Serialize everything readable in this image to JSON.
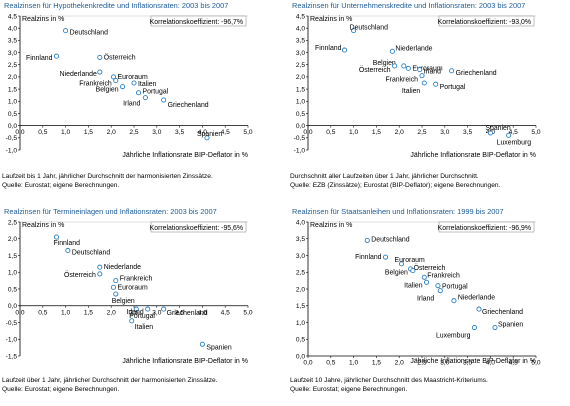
{
  "chart_data": [
    {
      "type": "scatter",
      "title": "Realzinsen für Hypothekenkredite und Inflationsraten: 2003 bis 2007",
      "ylabel": "Realzins in %",
      "xlabel": "Jährliche Inflationsrate BIP-Deflator in %",
      "xlim": [
        0,
        5
      ],
      "ylim": [
        -1,
        4.5
      ],
      "xticks": [
        "0,0",
        "0,5",
        "1,0",
        "1,5",
        "2,0",
        "2,5",
        "3,0",
        "3,5",
        "4,0",
        "4,5",
        "5,0"
      ],
      "yticks": [
        "-1,0",
        "-0,5",
        "0,0",
        "0,5",
        "1,0",
        "1,5",
        "2,0",
        "2,5",
        "3,0",
        "3,5",
        "4,0",
        "4,5"
      ],
      "annotation": "Korrelationskoeffizient: -96,7%",
      "points": [
        {
          "label": "Deutschland",
          "x": 1.0,
          "y": 3.9
        },
        {
          "label": "Finnland",
          "x": 0.8,
          "y": 2.85
        },
        {
          "label": "Österreich",
          "x": 1.75,
          "y": 2.8
        },
        {
          "label": "Niederlande",
          "x": 1.75,
          "y": 2.2
        },
        {
          "label": "Euroraum",
          "x": 2.05,
          "y": 2.0
        },
        {
          "label": "Frankreich",
          "x": 2.1,
          "y": 1.85
        },
        {
          "label": "Italien",
          "x": 2.5,
          "y": 1.75
        },
        {
          "label": "Belgien",
          "x": 2.25,
          "y": 1.6
        },
        {
          "label": "Portugal",
          "x": 2.6,
          "y": 1.35
        },
        {
          "label": "Irland",
          "x": 2.75,
          "y": 1.15
        },
        {
          "label": "Griechenland",
          "x": 3.15,
          "y": 1.05
        },
        {
          "label": "Spanien",
          "x": 4.1,
          "y": -0.5
        }
      ]
    },
    {
      "type": "scatter",
      "title": "Realzinsen für Unternehmenskredite und Inflationsraten: 2003 bis 2007",
      "ylabel": "Realzins in %",
      "xlabel": "Jährliche Inflationsrate BIP-Deflator in %",
      "xlim": [
        0,
        5
      ],
      "ylim": [
        -1,
        4.5
      ],
      "xticks": [
        "0,0",
        "0,5",
        "1,0",
        "1,5",
        "2,0",
        "2,5",
        "3,0",
        "3,5",
        "4,0",
        "4,5",
        "5,0"
      ],
      "yticks": [
        "-1,0",
        "-0,5",
        "0,0",
        "0,5",
        "1,0",
        "1,5",
        "2,0",
        "2,5",
        "3,0",
        "3,5",
        "4,0",
        "4,5"
      ],
      "annotation": "Korrelationskoeffizient: -93,0%",
      "points": [
        {
          "label": "Deutschland",
          "x": 1.0,
          "y": 3.9
        },
        {
          "label": "Finnland",
          "x": 0.8,
          "y": 3.1
        },
        {
          "label": "Niederlande",
          "x": 1.85,
          "y": 3.05
        },
        {
          "label": "Belgien",
          "x": 2.1,
          "y": 2.45
        },
        {
          "label": "Österreich",
          "x": 1.9,
          "y": 2.45
        },
        {
          "label": "Euroraum",
          "x": 2.2,
          "y": 2.35
        },
        {
          "label": "Irland",
          "x": 2.45,
          "y": 2.3
        },
        {
          "label": "Frankreich",
          "x": 2.5,
          "y": 2.05
        },
        {
          "label": "Griechenland",
          "x": 3.15,
          "y": 2.25
        },
        {
          "label": "Portugal",
          "x": 2.8,
          "y": 1.7
        },
        {
          "label": "Italien",
          "x": 2.55,
          "y": 1.75
        },
        {
          "label": "Spanien",
          "x": 4.0,
          "y": -0.3
        },
        {
          "label": "Luxemburg",
          "x": 4.4,
          "y": -0.4
        }
      ]
    },
    {
      "type": "scatter",
      "title": "Realzinsen für Termineinlagen und Inflationsraten: 2003 bis 2007",
      "ylabel": "Realzins in %",
      "xlabel": "Jährliche Inflationsrate BIP-Deflator in %",
      "xlim": [
        0,
        5
      ],
      "ylim": [
        -1.5,
        2.5
      ],
      "xticks": [
        "0,0",
        "0,5",
        "1,0",
        "1,5",
        "2,0",
        "2,5",
        "3,0",
        "3,5",
        "4,0",
        "4,5",
        "5,0"
      ],
      "yticks": [
        "-1,5",
        "-1,0",
        "-0,5",
        "0,0",
        "0,5",
        "1,0",
        "1,5",
        "2,0",
        "2,5"
      ],
      "annotation": "Korrelationskoeffizient: -95,6%",
      "points": [
        {
          "label": "Finnland",
          "x": 0.8,
          "y": 2.05
        },
        {
          "label": "Deutschland",
          "x": 1.05,
          "y": 1.65
        },
        {
          "label": "Niederlande",
          "x": 1.75,
          "y": 1.15
        },
        {
          "label": "Österreich",
          "x": 1.75,
          "y": 0.95
        },
        {
          "label": "Frankreich",
          "x": 2.1,
          "y": 0.75
        },
        {
          "label": "Euroraum",
          "x": 2.05,
          "y": 0.55
        },
        {
          "label": "Belgien",
          "x": 2.1,
          "y": 0.35
        },
        {
          "label": "Portugal",
          "x": 2.55,
          "y": -0.1
        },
        {
          "label": "Irland",
          "x": 2.8,
          "y": -0.1
        },
        {
          "label": "Griechenland",
          "x": 3.15,
          "y": -0.1
        },
        {
          "label": "Italien",
          "x": 2.45,
          "y": -0.45
        },
        {
          "label": "Spanien",
          "x": 4.0,
          "y": -1.15
        }
      ]
    },
    {
      "type": "scatter",
      "title": "Realzinsen für Staatsanleihen und Inflationsraten: 1999 bis 2007",
      "ylabel": "Realzins in %",
      "xlabel": "Jährliche Inflationsrate BIP-Deflator in %",
      "xlim": [
        0,
        5
      ],
      "ylim": [
        0,
        4
      ],
      "xticks": [
        "0,0",
        "0,5",
        "1,0",
        "1,5",
        "2,0",
        "2,5",
        "3,0",
        "3,5",
        "4,0",
        "4,5",
        "5,0"
      ],
      "yticks": [
        "0,0",
        "0,5",
        "1,0",
        "1,5",
        "2,0",
        "2,5",
        "3,0",
        "3,5",
        "4,0"
      ],
      "annotation": "Korrelationskoeffizient: -96,9%",
      "points": [
        {
          "label": "Deutschland",
          "x": 1.3,
          "y": 3.45
        },
        {
          "label": "Finnland",
          "x": 1.7,
          "y": 2.95
        },
        {
          "label": "Euroraum",
          "x": 2.05,
          "y": 2.75
        },
        {
          "label": "Österreich",
          "x": 2.25,
          "y": 2.6
        },
        {
          "label": "Belgien",
          "x": 2.3,
          "y": 2.55
        },
        {
          "label": "Frankreich",
          "x": 2.55,
          "y": 2.35
        },
        {
          "label": "Italien",
          "x": 2.6,
          "y": 2.2
        },
        {
          "label": "Portugal",
          "x": 2.85,
          "y": 2.1
        },
        {
          "label": "Irland",
          "x": 2.9,
          "y": 1.95
        },
        {
          "label": "Niederlande",
          "x": 3.2,
          "y": 1.65
        },
        {
          "label": "Griechenland",
          "x": 3.75,
          "y": 1.4
        },
        {
          "label": "Spanien",
          "x": 4.1,
          "y": 0.85
        },
        {
          "label": "Luxemburg",
          "x": 3.65,
          "y": 0.85
        }
      ]
    }
  ],
  "notes": [
    [
      "Laufzeit bis 1 Jahr, jährlicher Durchschnitt der harmonisierten Zinssätze.",
      "Quelle: Eurostat; eigene Berechnungen."
    ],
    [
      "Durchschnitt aller Laufzeiten über 1 Jahr, jährlicher Durchschnitt.",
      "Quelle: EZB (Zinssätze); Eurostat (BIP-Deflator); eigene Berechnungen."
    ],
    [
      "Laufzeit über 1 Jahr, jährlicher Durchschnitt der harmonisierten Zinssätze.",
      "Quelle: Eurostat; eigene Berechnungen."
    ],
    [
      "Laufzeit 10 Jahre, jährlicher Durchschnitt des Maastricht-Kriteriums.",
      "Quelle: Eurostat; eigene Berechnungen."
    ]
  ],
  "colors": {
    "title": "#1f5c99",
    "marker": "#2a7fc1",
    "axis": "#000000",
    "grid": "#bfbfbf"
  }
}
